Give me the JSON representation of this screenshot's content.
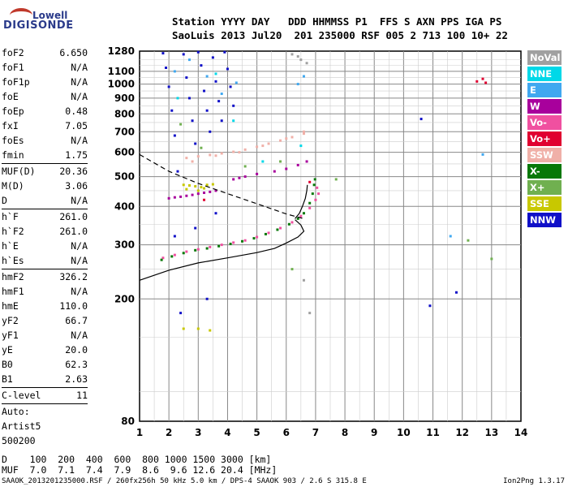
{
  "logo": {
    "line1": "Lowell",
    "line2": "DIGISONDE"
  },
  "header": {
    "line1": "Station YYYY DAY   DDD HHMMSS P1  FFS S AXN PPS IGA PS",
    "line2": "SaoLuis 2013 Jul20  201 235000 RSF 005 2 713 100 10+ 22"
  },
  "params": [
    [
      {
        "k": "foF2",
        "v": "6.650"
      },
      {
        "k": "foF1",
        "v": "N/A"
      },
      {
        "k": "foF1p",
        "v": "N/A"
      },
      {
        "k": "foE",
        "v": "N/A"
      },
      {
        "k": "foEp",
        "v": "0.48"
      },
      {
        "k": "fxI",
        "v": "7.05"
      },
      {
        "k": "foEs",
        "v": "N/A"
      },
      {
        "k": "fmin",
        "v": "1.75"
      }
    ],
    [
      {
        "k": "MUF(D)",
        "v": "20.36"
      },
      {
        "k": "M(D)",
        "v": "3.06"
      },
      {
        "k": "D",
        "v": "N/A"
      }
    ],
    [
      {
        "k": "h`F",
        "v": "261.0"
      },
      {
        "k": "h`F2",
        "v": "261.0"
      },
      {
        "k": "h`E",
        "v": "N/A"
      },
      {
        "k": "h`Es",
        "v": "N/A"
      }
    ],
    [
      {
        "k": "hmF2",
        "v": "326.2"
      },
      {
        "k": "hmF1",
        "v": "N/A"
      },
      {
        "k": "hmE",
        "v": "110.0"
      },
      {
        "k": "yF2",
        "v": "66.7"
      },
      {
        "k": "yF1",
        "v": "N/A"
      },
      {
        "k": "yE",
        "v": "20.0"
      },
      {
        "k": "B0",
        "v": "62.3"
      },
      {
        "k": "B1",
        "v": "2.63"
      }
    ],
    [
      {
        "k": "C-level",
        "v": "11"
      }
    ]
  ],
  "auto": {
    "line1": "Auto:",
    "line2": "Artist5",
    "line3": "500200"
  },
  "legend": [
    {
      "label": "NoVal",
      "color": "#a0a0a0"
    },
    {
      "label": "NNE",
      "color": "#00d8e8"
    },
    {
      "label": "E",
      "color": "#40a8f0"
    },
    {
      "label": "W",
      "color": "#a8009c"
    },
    {
      "label": "Vo-",
      "color": "#f050a0"
    },
    {
      "label": "Vo+",
      "color": "#e00030"
    },
    {
      "label": "SSW",
      "color": "#f0b0a8"
    },
    {
      "label": "X-",
      "color": "#087808"
    },
    {
      "label": "X+",
      "color": "#70b050"
    },
    {
      "label": "SSE",
      "color": "#c8c800"
    },
    {
      "label": "NNW",
      "color": "#1010c8"
    }
  ],
  "muf_table": {
    "d_label": "D",
    "d_values": "100  200  400  600  800 1000 1500 3000 [km]",
    "muf_label": "MUF",
    "muf_values": "7.0  7.1  7.4  7.9  8.6  9.6 12.6 20.4 [MHz]"
  },
  "footer": {
    "left": "SAAOK_2013201235000.RSF / 260fx256h 50 kHz 5.0 km / DPS-4 SAAOK 903 / 2.6 S 315.8 E",
    "right": "Ion2Png 1.3.17"
  },
  "chart_data": {
    "type": "scatter",
    "x_ticks": [
      "1",
      "2",
      "3",
      "4",
      "5",
      "6",
      "7",
      "8",
      "9",
      "10",
      "11",
      "12",
      "13",
      "14"
    ],
    "y_ticks": [
      "80",
      "200",
      "300",
      "400",
      "500",
      "600",
      "700",
      "800",
      "900",
      "1000",
      "1100",
      "1280"
    ],
    "xlim": [
      1,
      14
    ],
    "ylim": [
      80,
      1280
    ],
    "xlabel": "",
    "ylabel": "",
    "series": [
      {
        "color": "#f0b0a8",
        "points": [
          [
            2.6,
            575
          ],
          [
            3.0,
            582
          ],
          [
            3.4,
            588
          ],
          [
            3.8,
            595
          ],
          [
            4.2,
            602
          ],
          [
            4.6,
            612
          ],
          [
            5.0,
            625
          ],
          [
            5.4,
            640
          ],
          [
            5.8,
            655
          ],
          [
            6.2,
            672
          ],
          [
            6.6,
            690
          ],
          [
            2.8,
            560
          ],
          [
            3.6,
            585
          ],
          [
            4.4,
            600
          ],
          [
            5.2,
            630
          ],
          [
            6.0,
            665
          ],
          [
            6.6,
            700
          ]
        ]
      },
      {
        "color": "#c8c800",
        "points": [
          [
            2.5,
            470
          ],
          [
            2.7,
            468
          ],
          [
            2.9,
            465
          ],
          [
            3.1,
            462
          ],
          [
            3.3,
            470
          ],
          [
            3.5,
            472
          ],
          [
            2.6,
            455
          ],
          [
            3.0,
            450
          ],
          [
            3.2,
            458
          ],
          [
            2.5,
            160
          ],
          [
            3.0,
            160
          ],
          [
            3.4,
            158
          ]
        ]
      },
      {
        "color": "#a8009c",
        "points": [
          [
            2.0,
            425
          ],
          [
            2.2,
            428
          ],
          [
            2.4,
            430
          ],
          [
            2.6,
            433
          ],
          [
            2.8,
            436
          ],
          [
            3.0,
            440
          ],
          [
            3.2,
            443
          ],
          [
            3.4,
            446
          ],
          [
            3.6,
            450
          ],
          [
            4.2,
            490
          ],
          [
            4.4,
            495
          ],
          [
            4.6,
            500
          ],
          [
            5.0,
            510
          ],
          [
            5.6,
            520
          ],
          [
            6.0,
            530
          ],
          [
            6.4,
            545
          ],
          [
            6.7,
            560
          ]
        ]
      },
      {
        "color": "#f050a0",
        "points": [
          [
            1.8,
            272
          ],
          [
            2.2,
            278
          ],
          [
            2.6,
            285
          ],
          [
            3.0,
            290
          ],
          [
            3.4,
            295
          ],
          [
            3.8,
            300
          ],
          [
            4.2,
            305
          ],
          [
            4.6,
            310
          ],
          [
            5.0,
            318
          ],
          [
            5.4,
            328
          ],
          [
            5.8,
            340
          ],
          [
            6.2,
            355
          ],
          [
            6.5,
            372
          ],
          [
            6.8,
            395
          ],
          [
            7.0,
            420
          ],
          [
            7.1,
            440
          ],
          [
            7.05,
            460
          ]
        ]
      },
      {
        "color": "#087808",
        "points": [
          [
            1.75,
            268
          ],
          [
            2.1,
            275
          ],
          [
            2.5,
            282
          ],
          [
            2.9,
            288
          ],
          [
            3.3,
            292
          ],
          [
            3.7,
            297
          ],
          [
            4.1,
            302
          ],
          [
            4.5,
            308
          ],
          [
            4.9,
            315
          ],
          [
            5.3,
            325
          ],
          [
            5.7,
            336
          ],
          [
            6.1,
            350
          ],
          [
            6.4,
            365
          ],
          [
            6.6,
            380
          ],
          [
            6.8,
            410
          ],
          [
            6.9,
            440
          ],
          [
            6.95,
            470
          ],
          [
            6.98,
            490
          ]
        ]
      },
      {
        "color": "#1010c8",
        "points": [
          [
            1.8,
            1260
          ],
          [
            1.9,
            1130
          ],
          [
            2.0,
            980
          ],
          [
            2.1,
            820
          ],
          [
            2.2,
            680
          ],
          [
            2.3,
            520
          ],
          [
            2.5,
            1250
          ],
          [
            2.6,
            1050
          ],
          [
            2.7,
            900
          ],
          [
            2.8,
            760
          ],
          [
            2.9,
            640
          ],
          [
            3.0,
            1270
          ],
          [
            3.1,
            1150
          ],
          [
            3.2,
            950
          ],
          [
            3.3,
            820
          ],
          [
            3.4,
            700
          ],
          [
            3.5,
            1220
          ],
          [
            3.6,
            1020
          ],
          [
            3.7,
            880
          ],
          [
            3.8,
            760
          ],
          [
            3.9,
            1270
          ],
          [
            4.0,
            1120
          ],
          [
            4.1,
            980
          ],
          [
            4.2,
            850
          ],
          [
            3.6,
            380
          ],
          [
            2.9,
            340
          ],
          [
            2.2,
            320
          ],
          [
            3.3,
            200
          ],
          [
            2.4,
            180
          ],
          [
            10.6,
            770
          ],
          [
            10.9,
            190
          ],
          [
            11.8,
            210
          ]
        ]
      },
      {
        "color": "#40a8f0",
        "points": [
          [
            2.2,
            1100
          ],
          [
            2.7,
            1200
          ],
          [
            3.3,
            1060
          ],
          [
            3.8,
            930
          ],
          [
            4.3,
            1010
          ],
          [
            6.4,
            1000
          ],
          [
            6.6,
            1060
          ],
          [
            12.7,
            590
          ],
          [
            11.6,
            320
          ]
        ]
      },
      {
        "color": "#e00030",
        "points": [
          [
            12.7,
            1040
          ],
          [
            12.8,
            1010
          ],
          [
            12.5,
            1020
          ],
          [
            6.8,
            480
          ],
          [
            3.2,
            420
          ]
        ]
      },
      {
        "color": "#70b050",
        "points": [
          [
            2.4,
            740
          ],
          [
            3.1,
            620
          ],
          [
            4.6,
            540
          ],
          [
            5.8,
            560
          ],
          [
            6.2,
            250
          ],
          [
            7.7,
            490
          ],
          [
            12.2,
            310
          ],
          [
            13.0,
            270
          ]
        ]
      },
      {
        "color": "#00d8e8",
        "points": [
          [
            2.3,
            900
          ],
          [
            3.6,
            1080
          ],
          [
            4.2,
            760
          ],
          [
            5.2,
            560
          ],
          [
            6.5,
            630
          ]
        ]
      },
      {
        "color": "#a0a0a0",
        "points": [
          [
            6.2,
            1250
          ],
          [
            6.4,
            1230
          ],
          [
            6.5,
            1200
          ],
          [
            6.7,
            1170
          ],
          [
            6.6,
            230
          ],
          [
            6.8,
            180
          ]
        ]
      }
    ],
    "curves": [
      {
        "kind": "solid-profile",
        "points": [
          [
            1,
            230
          ],
          [
            2,
            248
          ],
          [
            3,
            262
          ],
          [
            4,
            272
          ],
          [
            5,
            283
          ],
          [
            5.6,
            292
          ],
          [
            6,
            304
          ],
          [
            6.4,
            318
          ],
          [
            6.6,
            332
          ],
          [
            6.5,
            348
          ],
          [
            6.3,
            362
          ]
        ]
      },
      {
        "kind": "solid-trace",
        "points": [
          [
            6.3,
            365
          ],
          [
            6.45,
            380
          ],
          [
            6.55,
            400
          ],
          [
            6.65,
            425
          ],
          [
            6.7,
            450
          ],
          [
            6.72,
            470
          ]
        ]
      },
      {
        "kind": "dashed",
        "points": [
          [
            1,
            590
          ],
          [
            2,
            520
          ],
          [
            3,
            475
          ],
          [
            4,
            440
          ],
          [
            5,
            408
          ],
          [
            6,
            378
          ],
          [
            6.6,
            365
          ]
        ]
      }
    ]
  }
}
